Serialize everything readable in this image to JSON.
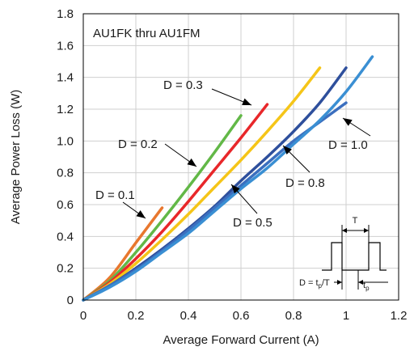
{
  "chart_data": {
    "type": "line",
    "title": "AU1FK thru AU1FM",
    "xlabel": "Average Forward Current (A)",
    "ylabel": "Average Power Loss (W)",
    "xlim": [
      0,
      1.2
    ],
    "ylim": [
      0,
      1.8
    ],
    "x_ticks": [
      "0",
      "0.2",
      "0.4",
      "0.6",
      "0.8",
      "1",
      "1.2"
    ],
    "y_ticks": [
      "0",
      "0.2",
      "0.4",
      "0.6",
      "0.8",
      "1.0",
      "1.2",
      "1.4",
      "1.6",
      "1.8"
    ],
    "grid": true,
    "series": [
      {
        "name": "D = 0.1",
        "color": "#e8772e",
        "points": [
          [
            0,
            0
          ],
          [
            0.1,
            0.14
          ],
          [
            0.2,
            0.36
          ],
          [
            0.3,
            0.58
          ]
        ]
      },
      {
        "name": "D = 0.2",
        "color": "#62b847",
        "points": [
          [
            0,
            0
          ],
          [
            0.1,
            0.12
          ],
          [
            0.2,
            0.3
          ],
          [
            0.3,
            0.5
          ],
          [
            0.4,
            0.71
          ],
          [
            0.5,
            0.93
          ],
          [
            0.6,
            1.16
          ]
        ]
      },
      {
        "name": "D = 0.3",
        "color": "#e8272a",
        "points": [
          [
            0,
            0
          ],
          [
            0.1,
            0.11
          ],
          [
            0.2,
            0.26
          ],
          [
            0.3,
            0.43
          ],
          [
            0.4,
            0.62
          ],
          [
            0.5,
            0.82
          ],
          [
            0.6,
            1.02
          ],
          [
            0.7,
            1.23
          ]
        ]
      },
      {
        "name": "",
        "color": "#f5c518",
        "points": [
          [
            0,
            0
          ],
          [
            0.1,
            0.1
          ],
          [
            0.2,
            0.23
          ],
          [
            0.3,
            0.38
          ],
          [
            0.4,
            0.54
          ],
          [
            0.5,
            0.71
          ],
          [
            0.6,
            0.88
          ],
          [
            0.7,
            1.06
          ],
          [
            0.8,
            1.25
          ],
          [
            0.9,
            1.46
          ]
        ]
      },
      {
        "name": "D = 0.5",
        "color": "#2e4f9c",
        "points": [
          [
            0,
            0
          ],
          [
            0.1,
            0.09
          ],
          [
            0.2,
            0.2
          ],
          [
            0.3,
            0.32
          ],
          [
            0.4,
            0.45
          ],
          [
            0.5,
            0.59
          ],
          [
            0.6,
            0.75
          ],
          [
            0.7,
            0.9
          ],
          [
            0.8,
            1.06
          ],
          [
            0.9,
            1.24
          ],
          [
            1.0,
            1.46
          ]
        ]
      },
      {
        "name": "D = 0.8",
        "color": "#3b6fbf",
        "points": [
          [
            0,
            0
          ],
          [
            0.1,
            0.09
          ],
          [
            0.2,
            0.19
          ],
          [
            0.3,
            0.31
          ],
          [
            0.4,
            0.44
          ],
          [
            0.5,
            0.58
          ],
          [
            0.6,
            0.72
          ],
          [
            0.7,
            0.86
          ],
          [
            0.8,
            1.0
          ],
          [
            0.9,
            1.12
          ],
          [
            1.0,
            1.24
          ]
        ]
      },
      {
        "name": "D = 1.0",
        "color": "#3a8fd3",
        "points": [
          [
            0,
            0
          ],
          [
            0.1,
            0.08
          ],
          [
            0.2,
            0.18
          ],
          [
            0.3,
            0.3
          ],
          [
            0.4,
            0.42
          ],
          [
            0.5,
            0.56
          ],
          [
            0.6,
            0.7
          ],
          [
            0.7,
            0.83
          ],
          [
            0.8,
            0.98
          ],
          [
            0.9,
            1.13
          ],
          [
            1.0,
            1.31
          ],
          [
            1.1,
            1.53
          ]
        ]
      }
    ],
    "annotations": [
      {
        "text": "D = 0.1",
        "series": 0
      },
      {
        "text": "D = 0.2",
        "series": 1
      },
      {
        "text": "D = 0.3",
        "series": 2
      },
      {
        "text": "D = 0.5",
        "series": 4
      },
      {
        "text": "D = 0.8",
        "series": 5
      },
      {
        "text": "D = 1.0",
        "series": 6
      }
    ],
    "inset": {
      "period_label": "T",
      "duty_label_main": "D = t",
      "duty_label_sub": "p",
      "duty_label_tail": "/T",
      "pulse_label_main": "t",
      "pulse_label_sub": "p"
    }
  }
}
